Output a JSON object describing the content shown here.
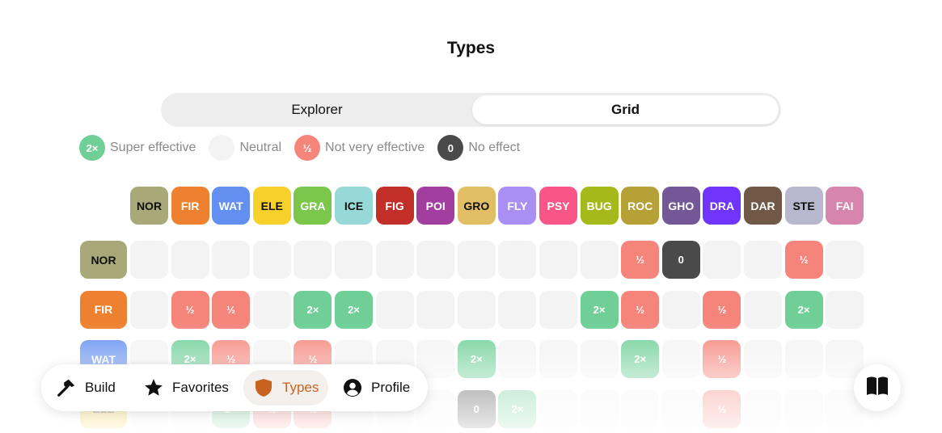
{
  "title": "Types",
  "segmented": {
    "explorer": "Explorer",
    "grid": "Grid",
    "selected": "Grid"
  },
  "legend": [
    {
      "chip": "2×",
      "label": "Super effective",
      "color": "#6fcf97"
    },
    {
      "chip": "",
      "label": "Neutral",
      "color": "#f3f3f3"
    },
    {
      "chip": "½",
      "label": "Not very effective",
      "color": "#f5857b"
    },
    {
      "chip": "0",
      "label": "No effect",
      "color": "#4a4a4a"
    }
  ],
  "types": [
    {
      "abbr": "NOR",
      "color": "#a8a878",
      "dark_text": true
    },
    {
      "abbr": "FIR",
      "color": "#ee8130",
      "dark_text": false
    },
    {
      "abbr": "WAT",
      "color": "#6390f0",
      "dark_text": false
    },
    {
      "abbr": "ELE",
      "color": "#f7d02c",
      "dark_text": true
    },
    {
      "abbr": "GRA",
      "color": "#7ac74c",
      "dark_text": false
    },
    {
      "abbr": "ICE",
      "color": "#96d9d6",
      "dark_text": true
    },
    {
      "abbr": "FIG",
      "color": "#c22e28",
      "dark_text": false
    },
    {
      "abbr": "POI",
      "color": "#a33ea1",
      "dark_text": false
    },
    {
      "abbr": "GRO",
      "color": "#e2bf65",
      "dark_text": true
    },
    {
      "abbr": "FLY",
      "color": "#a98ff3",
      "dark_text": false
    },
    {
      "abbr": "PSY",
      "color": "#f95587",
      "dark_text": false
    },
    {
      "abbr": "BUG",
      "color": "#a6b91a",
      "dark_text": false
    },
    {
      "abbr": "ROC",
      "color": "#b6a136",
      "dark_text": false
    },
    {
      "abbr": "GHO",
      "color": "#735797",
      "dark_text": false
    },
    {
      "abbr": "DRA",
      "color": "#6f35fc",
      "dark_text": false
    },
    {
      "abbr": "DAR",
      "color": "#705746",
      "dark_text": false
    },
    {
      "abbr": "STE",
      "color": "#b7b7ce",
      "dark_text": true
    },
    {
      "abbr": "FAI",
      "color": "#d685ad",
      "dark_text": false
    }
  ],
  "rows": [
    {
      "attacker": "NOR",
      "values": [
        "",
        "",
        "",
        "",
        "",
        "",
        "",
        "",
        "",
        "",
        "",
        "",
        "½",
        "0",
        "",
        "",
        "½",
        ""
      ]
    },
    {
      "attacker": "FIR",
      "values": [
        "",
        "½",
        "½",
        "",
        "2×",
        "2×",
        "",
        "",
        "",
        "",
        "",
        "2×",
        "½",
        "",
        "½",
        "",
        "2×",
        ""
      ]
    },
    {
      "attacker": "WAT",
      "values": [
        "",
        "2×",
        "½",
        "",
        "½",
        "",
        "",
        "",
        "2×",
        "",
        "",
        "",
        "2×",
        "",
        "½",
        "",
        "",
        ""
      ]
    },
    {
      "attacker": "ELE",
      "values": [
        "",
        "",
        "2×",
        "½",
        "½",
        "",
        "",
        "",
        "0",
        "2×",
        "",
        "",
        "",
        "",
        "½",
        "",
        "",
        ""
      ]
    }
  ],
  "nav": {
    "build": "Build",
    "favorites": "Favorites",
    "types": "Types",
    "profile": "Profile",
    "active": "Types",
    "icons": {
      "build": "hammer-icon",
      "favorites": "star-icon",
      "types": "shield-icon",
      "profile": "person-circle-icon",
      "guide": "book-icon"
    }
  }
}
